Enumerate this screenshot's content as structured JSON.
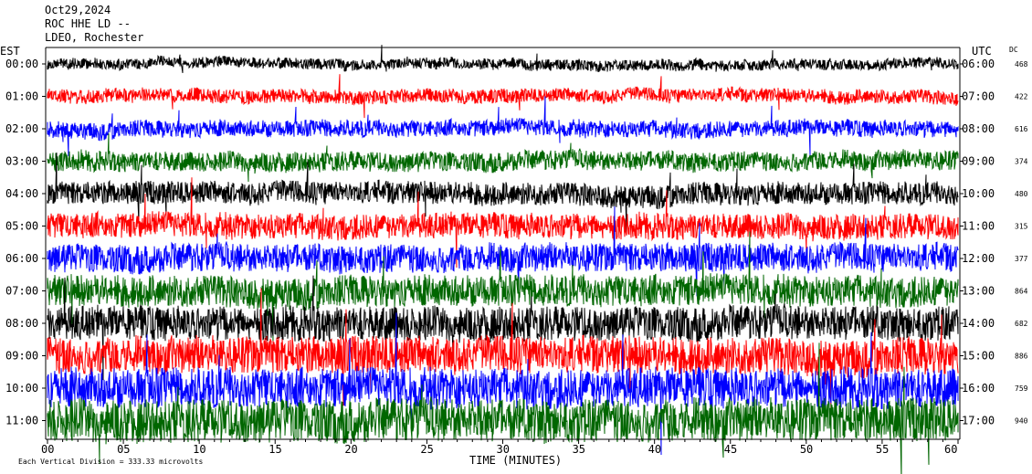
{
  "header": {
    "date": "Oct29,2024",
    "station": "ROC HHE LD --",
    "location": "LDEO, Rochester"
  },
  "left_axis_label": "EST",
  "right_axis_label": "UTC",
  "dc_label": "DC",
  "footer_note": "Each Vertical Division = 333.33 microvolts",
  "chart_data": {
    "type": "line",
    "title": "",
    "xlabel": "TIME (MINUTES)",
    "xlim": [
      0,
      60
    ],
    "x_ticks": [
      "00",
      "05",
      "10",
      "15",
      "20",
      "25",
      "30",
      "35",
      "40",
      "45",
      "50",
      "55",
      "60"
    ],
    "rows": [
      {
        "est": "00:00",
        "utc": "06:00",
        "dc": "468",
        "color": "#000000"
      },
      {
        "est": "01:00",
        "utc": "07:00",
        "dc": "422",
        "color": "#ff0000"
      },
      {
        "est": "02:00",
        "utc": "08:00",
        "dc": "616",
        "color": "#0000ff"
      },
      {
        "est": "03:00",
        "utc": "09:00",
        "dc": "374",
        "color": "#006600"
      },
      {
        "est": "04:00",
        "utc": "10:00",
        "dc": "480",
        "color": "#000000"
      },
      {
        "est": "05:00",
        "utc": "11:00",
        "dc": "315",
        "color": "#ff0000"
      },
      {
        "est": "06:00",
        "utc": "12:00",
        "dc": "377",
        "color": "#0000ff"
      },
      {
        "est": "07:00",
        "utc": "13:00",
        "dc": "864",
        "color": "#006600"
      },
      {
        "est": "08:00",
        "utc": "14:00",
        "dc": "682",
        "color": "#000000"
      },
      {
        "est": "09:00",
        "utc": "15:00",
        "dc": "886",
        "color": "#ff0000"
      },
      {
        "est": "10:00",
        "utc": "16:00",
        "dc": "759",
        "color": "#0000ff"
      },
      {
        "est": "11:00",
        "utc": "17:00",
        "dc": "940",
        "color": "#006600"
      }
    ]
  }
}
